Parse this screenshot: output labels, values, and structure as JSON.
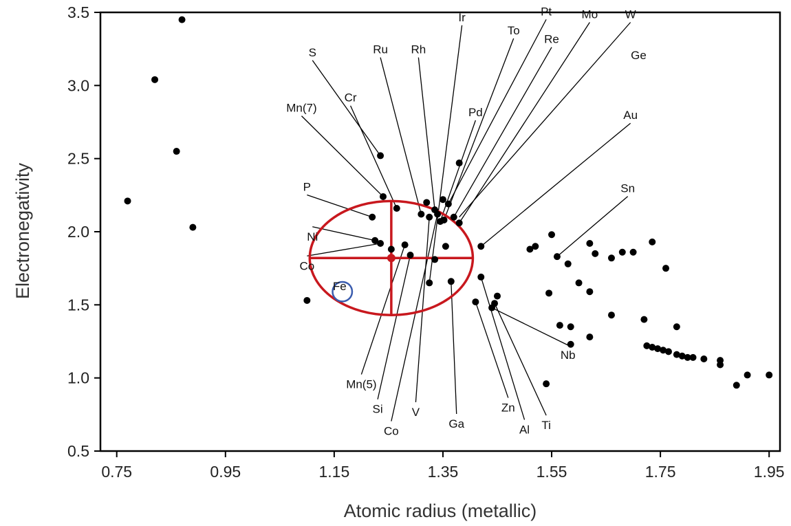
{
  "chart_data": {
    "type": "scatter",
    "xlabel": "Atomic radius (metallic)",
    "ylabel": "Electronegativity",
    "xlim": [
      0.72,
      1.97
    ],
    "ylim": [
      0.5,
      3.5
    ],
    "xticks": [
      "0.75",
      "0.95",
      "1.15",
      "1.35",
      "1.55",
      "1.75",
      "1.95"
    ],
    "yticks": [
      "0.5",
      "1.0",
      "1.5",
      "2.0",
      "2.5",
      "3.0",
      "3.5"
    ],
    "grid": false,
    "legend": "none",
    "point_color": "#000000",
    "ellipse_color": "#c8181e",
    "circle_color": "#3a5cae",
    "points": [
      {
        "x": 0.77,
        "y": 2.21
      },
      {
        "x": 0.82,
        "y": 3.04
      },
      {
        "x": 0.86,
        "y": 2.55
      },
      {
        "x": 0.87,
        "y": 3.45
      },
      {
        "x": 0.89,
        "y": 2.03
      },
      {
        "x": 1.1,
        "y": 1.53
      },
      {
        "x": 1.22,
        "y": 2.1
      },
      {
        "x": 1.225,
        "y": 1.94
      },
      {
        "x": 1.235,
        "y": 1.92
      },
      {
        "x": 1.235,
        "y": 2.52
      },
      {
        "x": 1.24,
        "y": 2.24
      },
      {
        "x": 1.255,
        "y": 1.88
      },
      {
        "x": 1.265,
        "y": 2.16
      },
      {
        "x": 1.28,
        "y": 1.91
      },
      {
        "x": 1.29,
        "y": 1.84
      },
      {
        "x": 1.31,
        "y": 2.12
      },
      {
        "x": 1.32,
        "y": 2.2
      },
      {
        "x": 1.325,
        "y": 1.65
      },
      {
        "x": 1.325,
        "y": 2.1
      },
      {
        "x": 1.335,
        "y": 2.15
      },
      {
        "x": 1.34,
        "y": 2.12
      },
      {
        "x": 1.345,
        "y": 2.07
      },
      {
        "x": 1.35,
        "y": 2.22
      },
      {
        "x": 1.352,
        "y": 2.08
      },
      {
        "x": 1.335,
        "y": 1.81
      },
      {
        "x": 1.355,
        "y": 1.9
      },
      {
        "x": 1.36,
        "y": 2.19
      },
      {
        "x": 1.365,
        "y": 1.66
      },
      {
        "x": 1.37,
        "y": 2.1
      },
      {
        "x": 1.38,
        "y": 2.06
      },
      {
        "x": 1.38,
        "y": 2.47
      },
      {
        "x": 1.41,
        "y": 1.52
      },
      {
        "x": 1.42,
        "y": 1.69
      },
      {
        "x": 1.42,
        "y": 1.9
      },
      {
        "x": 1.44,
        "y": 1.48
      },
      {
        "x": 1.445,
        "y": 1.51
      },
      {
        "x": 1.45,
        "y": 1.56
      },
      {
        "x": 1.51,
        "y": 1.88
      },
      {
        "x": 1.52,
        "y": 1.9
      },
      {
        "x": 1.54,
        "y": 0.96
      },
      {
        "x": 1.545,
        "y": 1.58
      },
      {
        "x": 1.55,
        "y": 1.98
      },
      {
        "x": 1.56,
        "y": 1.83
      },
      {
        "x": 1.565,
        "y": 1.36
      },
      {
        "x": 1.58,
        "y": 1.78
      },
      {
        "x": 1.585,
        "y": 1.35
      },
      {
        "x": 1.585,
        "y": 1.23
      },
      {
        "x": 1.6,
        "y": 1.65
      },
      {
        "x": 1.62,
        "y": 1.59
      },
      {
        "x": 1.62,
        "y": 1.92
      },
      {
        "x": 1.62,
        "y": 1.28
      },
      {
        "x": 1.63,
        "y": 1.85
      },
      {
        "x": 1.66,
        "y": 1.82
      },
      {
        "x": 1.66,
        "y": 1.43
      },
      {
        "x": 1.68,
        "y": 1.86
      },
      {
        "x": 1.7,
        "y": 1.86
      },
      {
        "x": 1.72,
        "y": 1.4
      },
      {
        "x": 1.725,
        "y": 1.22
      },
      {
        "x": 1.735,
        "y": 1.93
      },
      {
        "x": 1.735,
        "y": 1.21
      },
      {
        "x": 1.745,
        "y": 1.2
      },
      {
        "x": 1.755,
        "y": 1.19
      },
      {
        "x": 1.76,
        "y": 1.75
      },
      {
        "x": 1.765,
        "y": 1.18
      },
      {
        "x": 1.78,
        "y": 1.35
      },
      {
        "x": 1.78,
        "y": 1.16
      },
      {
        "x": 1.79,
        "y": 1.15
      },
      {
        "x": 1.8,
        "y": 1.14
      },
      {
        "x": 1.81,
        "y": 1.14
      },
      {
        "x": 1.83,
        "y": 1.13
      },
      {
        "x": 1.86,
        "y": 1.12
      },
      {
        "x": 1.86,
        "y": 1.09
      },
      {
        "x": 1.89,
        "y": 0.95
      },
      {
        "x": 1.91,
        "y": 1.02
      },
      {
        "x": 1.95,
        "y": 1.02
      }
    ],
    "annotations": [
      {
        "text": "S",
        "tx": 1.11,
        "ty": 3.2,
        "px": 1.235,
        "py": 2.52
      },
      {
        "text": "Mn(7)",
        "tx": 1.09,
        "ty": 2.82,
        "px": 1.24,
        "py": 2.24
      },
      {
        "text": "Cr",
        "tx": 1.18,
        "ty": 2.89,
        "px": 1.265,
        "py": 2.16
      },
      {
        "text": "P",
        "tx": 1.1,
        "ty": 2.28,
        "px": 1.22,
        "py": 2.1
      },
      {
        "text": "Ni",
        "tx": 1.11,
        "ty": 1.94,
        "px": 1.225,
        "py": 1.94
      },
      {
        "text": "Co",
        "tx": 1.1,
        "ty": 1.74,
        "px": 1.235,
        "py": 1.92
      },
      {
        "text": "Fe",
        "tx": 1.16,
        "ty": 1.6
      },
      {
        "text": "Ru",
        "tx": 1.235,
        "ty": 3.22,
        "px": 1.31,
        "py": 2.12
      },
      {
        "text": "Rh",
        "tx": 1.305,
        "ty": 3.22,
        "px": 1.335,
        "py": 2.15
      },
      {
        "text": "Ir",
        "tx": 1.385,
        "ty": 3.44,
        "px": 1.325,
        "py": 1.65
      },
      {
        "text": "To",
        "tx": 1.48,
        "ty": 3.35,
        "px": 1.352,
        "py": 2.08
      },
      {
        "text": "Pt",
        "tx": 1.54,
        "ty": 3.48,
        "px": 1.36,
        "py": 2.19
      },
      {
        "text": "Re",
        "tx": 1.55,
        "ty": 3.29,
        "px": 1.37,
        "py": 2.1
      },
      {
        "text": "Mo",
        "tx": 1.62,
        "ty": 3.46,
        "px": 1.38,
        "py": 2.06
      },
      {
        "text": "W",
        "tx": 1.695,
        "ty": 3.46,
        "px": 1.38,
        "py": 2.1
      },
      {
        "text": "Ge",
        "tx": 1.71,
        "ty": 3.18
      },
      {
        "text": "Pd",
        "tx": 1.41,
        "ty": 2.79,
        "px": 1.345,
        "py": 2.07
      },
      {
        "text": "Au",
        "tx": 1.695,
        "ty": 2.77,
        "px": 1.42,
        "py": 1.9
      },
      {
        "text": "Sn",
        "tx": 1.69,
        "ty": 2.27,
        "px": 1.56,
        "py": 1.83
      },
      {
        "text": "Nb",
        "tx": 1.58,
        "ty": 1.13,
        "px": 1.44,
        "py": 1.48
      },
      {
        "text": "Mn(5)",
        "tx": 1.2,
        "ty": 0.93,
        "px": 1.28,
        "py": 1.91
      },
      {
        "text": "Si",
        "tx": 1.23,
        "ty": 0.76,
        "px": 1.29,
        "py": 1.84
      },
      {
        "text": "V",
        "tx": 1.3,
        "ty": 0.74,
        "px": 1.325,
        "py": 2.1
      },
      {
        "text": "Co",
        "tx": 1.255,
        "ty": 0.61,
        "px": 1.34,
        "py": 2.12
      },
      {
        "text": "Ga",
        "tx": 1.375,
        "ty": 0.66,
        "px": 1.365,
        "py": 1.66
      },
      {
        "text": "Zn",
        "tx": 1.47,
        "ty": 0.77,
        "px": 1.41,
        "py": 1.52
      },
      {
        "text": "Al",
        "tx": 1.5,
        "ty": 0.62,
        "px": 1.42,
        "py": 1.69
      },
      {
        "text": "Ti",
        "tx": 1.54,
        "ty": 0.65,
        "px": 1.445,
        "py": 1.51
      }
    ],
    "ellipse": {
      "cx": 1.255,
      "cy": 1.82,
      "rx": 0.15,
      "ry": 0.39
    },
    "fe_circle": {
      "x": 1.165,
      "y": 1.59,
      "r_x": 0.018
    }
  }
}
